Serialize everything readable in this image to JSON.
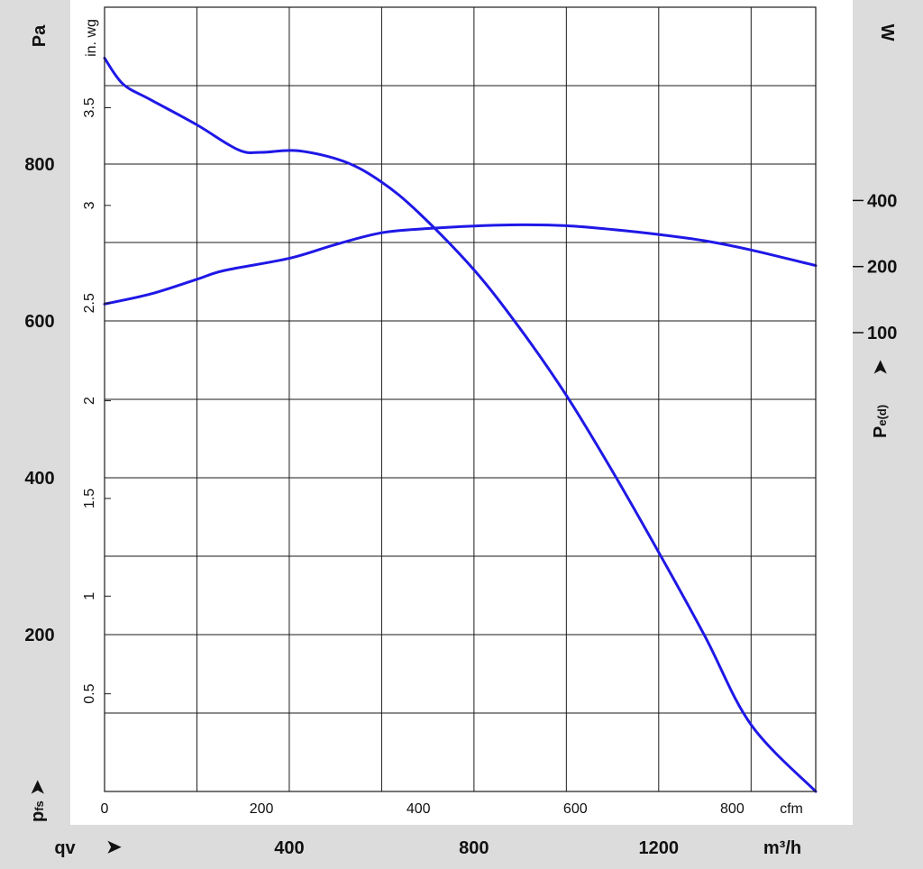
{
  "chart_data": {
    "type": "line",
    "x_axis": {
      "primary_unit": "cfm",
      "primary_ticks": [
        "0",
        "200",
        "400",
        "600",
        "800"
      ],
      "secondary_label": "qv",
      "secondary_unit": "m³/h",
      "secondary_ticks": [
        "400",
        "800",
        "1200"
      ],
      "range_m3h": [
        0,
        1540
      ]
    },
    "y_axis_left": {
      "unit": "Pa",
      "label": "pfs",
      "label_main": "p",
      "label_sub": "fs",
      "ticks": [
        "200",
        "400",
        "600",
        "800"
      ],
      "range": [
        0,
        1000
      ]
    },
    "y_axis_inner": {
      "unit": "in. wg",
      "ticks": [
        "0.5",
        "1",
        "1.5",
        "2",
        "2.5",
        "3",
        "3.5"
      ]
    },
    "y_axis_right": {
      "unit": "W",
      "label": "Pe(d)",
      "label_main": "P",
      "label_sub": "e(d)",
      "ticks": [
        "100",
        "200",
        "400"
      ],
      "scale": "log"
    },
    "series": [
      {
        "kind": "pressure",
        "axis": "left",
        "color": "#1f18e6",
        "points_m3h_pa": [
          [
            0,
            935
          ],
          [
            40,
            902
          ],
          [
            100,
            882
          ],
          [
            200,
            850
          ],
          [
            290,
            818
          ],
          [
            340,
            815
          ],
          [
            420,
            817
          ],
          [
            520,
            803
          ],
          [
            600,
            777
          ],
          [
            680,
            738
          ],
          [
            800,
            665
          ],
          [
            900,
            590
          ],
          [
            1000,
            505
          ],
          [
            1100,
            408
          ],
          [
            1200,
            305
          ],
          [
            1300,
            198
          ],
          [
            1400,
            85
          ],
          [
            1540,
            0
          ]
        ]
      },
      {
        "kind": "power",
        "axis": "right",
        "color": "#1f18e6",
        "points_m3h_w": [
          [
            0,
            135
          ],
          [
            100,
            150
          ],
          [
            200,
            175
          ],
          [
            260,
            192
          ],
          [
            400,
            218
          ],
          [
            500,
            252
          ],
          [
            600,
            285
          ],
          [
            700,
            298
          ],
          [
            800,
            306
          ],
          [
            900,
            310
          ],
          [
            1000,
            307
          ],
          [
            1100,
            295
          ],
          [
            1200,
            280
          ],
          [
            1300,
            262
          ],
          [
            1400,
            238
          ],
          [
            1540,
            202
          ]
        ]
      }
    ]
  }
}
